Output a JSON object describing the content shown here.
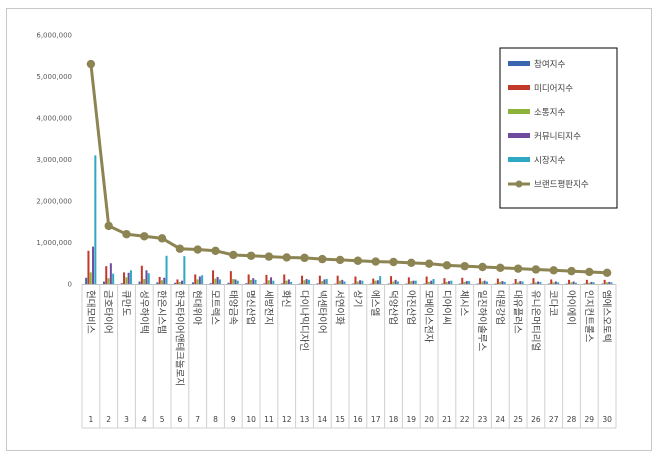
{
  "chart_data": {
    "type": "bar",
    "ylim": [
      0,
      6000000
    ],
    "yticks": [
      "0",
      "1,000,000",
      "2,000,000",
      "3,000,000",
      "4,000,000",
      "5,000,000",
      "6,000,000"
    ],
    "ytick_values": [
      0,
      1000000,
      2000000,
      3000000,
      4000000,
      5000000,
      6000000
    ],
    "grid": false,
    "legend_position": "top-right",
    "numbers": [
      "1",
      "2",
      "3",
      "4",
      "5",
      "6",
      "7",
      "8",
      "9",
      "10",
      "11",
      "12",
      "13",
      "14",
      "15",
      "16",
      "17",
      "18",
      "19",
      "20",
      "21",
      "22",
      "23",
      "24",
      "25",
      "26",
      "27",
      "28",
      "29",
      "30"
    ],
    "categories": [
      "현대모비스",
      "금호타이어",
      "큐만도",
      "성우하이텍",
      "한온시스템",
      "한국타이어앤테크놀로지",
      "현대위아",
      "모트렉스",
      "태양금속",
      "명신산업",
      "세방전지",
      "화신",
      "다이나믹디자인",
      "넥센타이어",
      "서연이화",
      "상기",
      "에스엘",
      "덕양산업",
      "아진산업",
      "모베이스전자",
      "디아이씨",
      "체시스",
      "일진하이솔루스",
      "대원강업",
      "대유플러스",
      "유니온머티리얼",
      "코다코",
      "아이에이",
      "인지컨트롤스",
      "엠에스오토텍"
    ],
    "series": [
      {
        "name": "참여지수",
        "color": "#3a66b0",
        "kind": "bar",
        "values": [
          150000,
          60000,
          20000,
          60000,
          40000,
          30000,
          40000,
          20000,
          30000,
          20000,
          15000,
          15000,
          10000,
          15000,
          10000,
          10000,
          10000,
          10000,
          10000,
          10000,
          10000,
          10000,
          10000,
          10000,
          10000,
          10000,
          10000,
          10000,
          10000,
          10000
        ]
      },
      {
        "name": "미디어지수",
        "color": "#c0392b",
        "kind": "bar",
        "values": [
          800000,
          430000,
          280000,
          440000,
          170000,
          110000,
          230000,
          330000,
          310000,
          230000,
          220000,
          230000,
          200000,
          200000,
          200000,
          180000,
          130000,
          190000,
          160000,
          180000,
          140000,
          150000,
          140000,
          130000,
          120000,
          140000,
          110000,
          100000,
          100000,
          100000
        ]
      },
      {
        "name": "소통지수",
        "color": "#8db33a",
        "kind": "bar",
        "values": [
          280000,
          140000,
          160000,
          120000,
          90000,
          50000,
          110000,
          130000,
          120000,
          100000,
          90000,
          80000,
          90000,
          70000,
          80000,
          60000,
          80000,
          60000,
          70000,
          50000,
          50000,
          50000,
          60000,
          50000,
          40000,
          40000,
          40000,
          40000,
          30000,
          40000
        ]
      },
      {
        "name": "커뮤니티지수",
        "color": "#6f4b9e",
        "kind": "bar",
        "values": [
          900000,
          500000,
          270000,
          330000,
          150000,
          80000,
          180000,
          170000,
          110000,
          140000,
          160000,
          110000,
          120000,
          110000,
          100000,
          90000,
          90000,
          100000,
          80000,
          80000,
          70000,
          70000,
          80000,
          70000,
          70000,
          60000,
          60000,
          60000,
          50000,
          50000
        ]
      },
      {
        "name": "시장지수",
        "color": "#2fa8c4",
        "kind": "bar",
        "values": [
          3100000,
          250000,
          330000,
          260000,
          680000,
          670000,
          210000,
          110000,
          80000,
          100000,
          80000,
          50000,
          100000,
          120000,
          60000,
          80000,
          190000,
          60000,
          80000,
          120000,
          80000,
          70000,
          60000,
          50000,
          60000,
          50000,
          40000,
          30000,
          40000,
          40000
        ]
      },
      {
        "name": "브랜드평판지수",
        "color": "#8c8452",
        "kind": "line",
        "values": [
          5300000,
          1400000,
          1200000,
          1150000,
          1100000,
          850000,
          830000,
          800000,
          700000,
          680000,
          660000,
          640000,
          630000,
          600000,
          580000,
          560000,
          540000,
          530000,
          510000,
          490000,
          450000,
          430000,
          410000,
          390000,
          370000,
          350000,
          330000,
          310000,
          290000,
          270000
        ]
      }
    ]
  }
}
